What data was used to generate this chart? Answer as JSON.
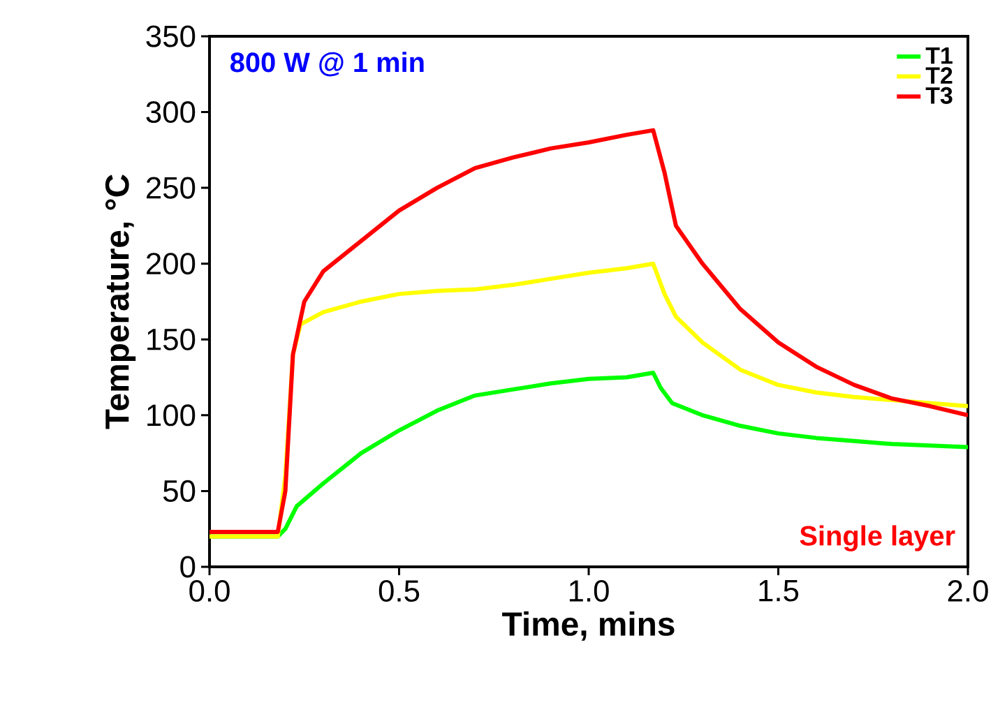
{
  "chart_data": {
    "type": "line",
    "xlabel": "Time, mins",
    "ylabel": "Temperature, °C",
    "annotations": [
      "800 W @ 1 min",
      "Single layer"
    ],
    "xlim": [
      0,
      2
    ],
    "ylim": [
      0,
      350
    ],
    "xticks": [
      {
        "value": 0,
        "label": "0.0"
      },
      {
        "value": 0.5,
        "label": "0.5"
      },
      {
        "value": 1,
        "label": "1.0"
      },
      {
        "value": 1.5,
        "label": "1.5"
      },
      {
        "value": 2,
        "label": "2.0"
      }
    ],
    "yticks": [
      0,
      50,
      100,
      150,
      200,
      250,
      300,
      350
    ],
    "legend": "top right",
    "grid": false,
    "marker": "none",
    "line_style": "solid",
    "series": [
      {
        "name": "T1",
        "color": "#00ff00",
        "x": [
          0,
          0.18,
          0.2,
          0.23,
          0.3,
          0.4,
          0.5,
          0.6,
          0.7,
          0.8,
          0.9,
          1.0,
          1.1,
          1.17,
          1.19,
          1.22,
          1.3,
          1.4,
          1.5,
          1.6,
          1.7,
          1.8,
          1.9,
          2.0
        ],
        "values": [
          20,
          20,
          25,
          40,
          55,
          75,
          90,
          103,
          113,
          117,
          121,
          124,
          125,
          128,
          118,
          108,
          100,
          93,
          88,
          85,
          83,
          81,
          80,
          79
        ]
      },
      {
        "name": "T2",
        "color": "#ffff00",
        "x": [
          0,
          0.18,
          0.2,
          0.22,
          0.24,
          0.3,
          0.4,
          0.5,
          0.6,
          0.7,
          0.8,
          0.9,
          1.0,
          1.1,
          1.17,
          1.2,
          1.23,
          1.3,
          1.4,
          1.5,
          1.6,
          1.7,
          1.8,
          1.9,
          2.0
        ],
        "values": [
          20,
          20,
          60,
          140,
          160,
          168,
          175,
          180,
          182,
          183,
          186,
          190,
          194,
          197,
          200,
          180,
          165,
          148,
          130,
          120,
          115,
          112,
          110,
          108,
          106
        ]
      },
      {
        "name": "T3",
        "color": "#ff0000",
        "x": [
          0,
          0.18,
          0.2,
          0.22,
          0.25,
          0.3,
          0.4,
          0.5,
          0.6,
          0.7,
          0.8,
          0.9,
          1.0,
          1.1,
          1.17,
          1.2,
          1.23,
          1.3,
          1.4,
          1.5,
          1.6,
          1.7,
          1.8,
          1.9,
          2.0
        ],
        "values": [
          23,
          23,
          50,
          140,
          175,
          195,
          215,
          235,
          250,
          263,
          270,
          276,
          280,
          285,
          288,
          260,
          225,
          200,
          170,
          148,
          132,
          120,
          111,
          106,
          100
        ]
      }
    ]
  }
}
